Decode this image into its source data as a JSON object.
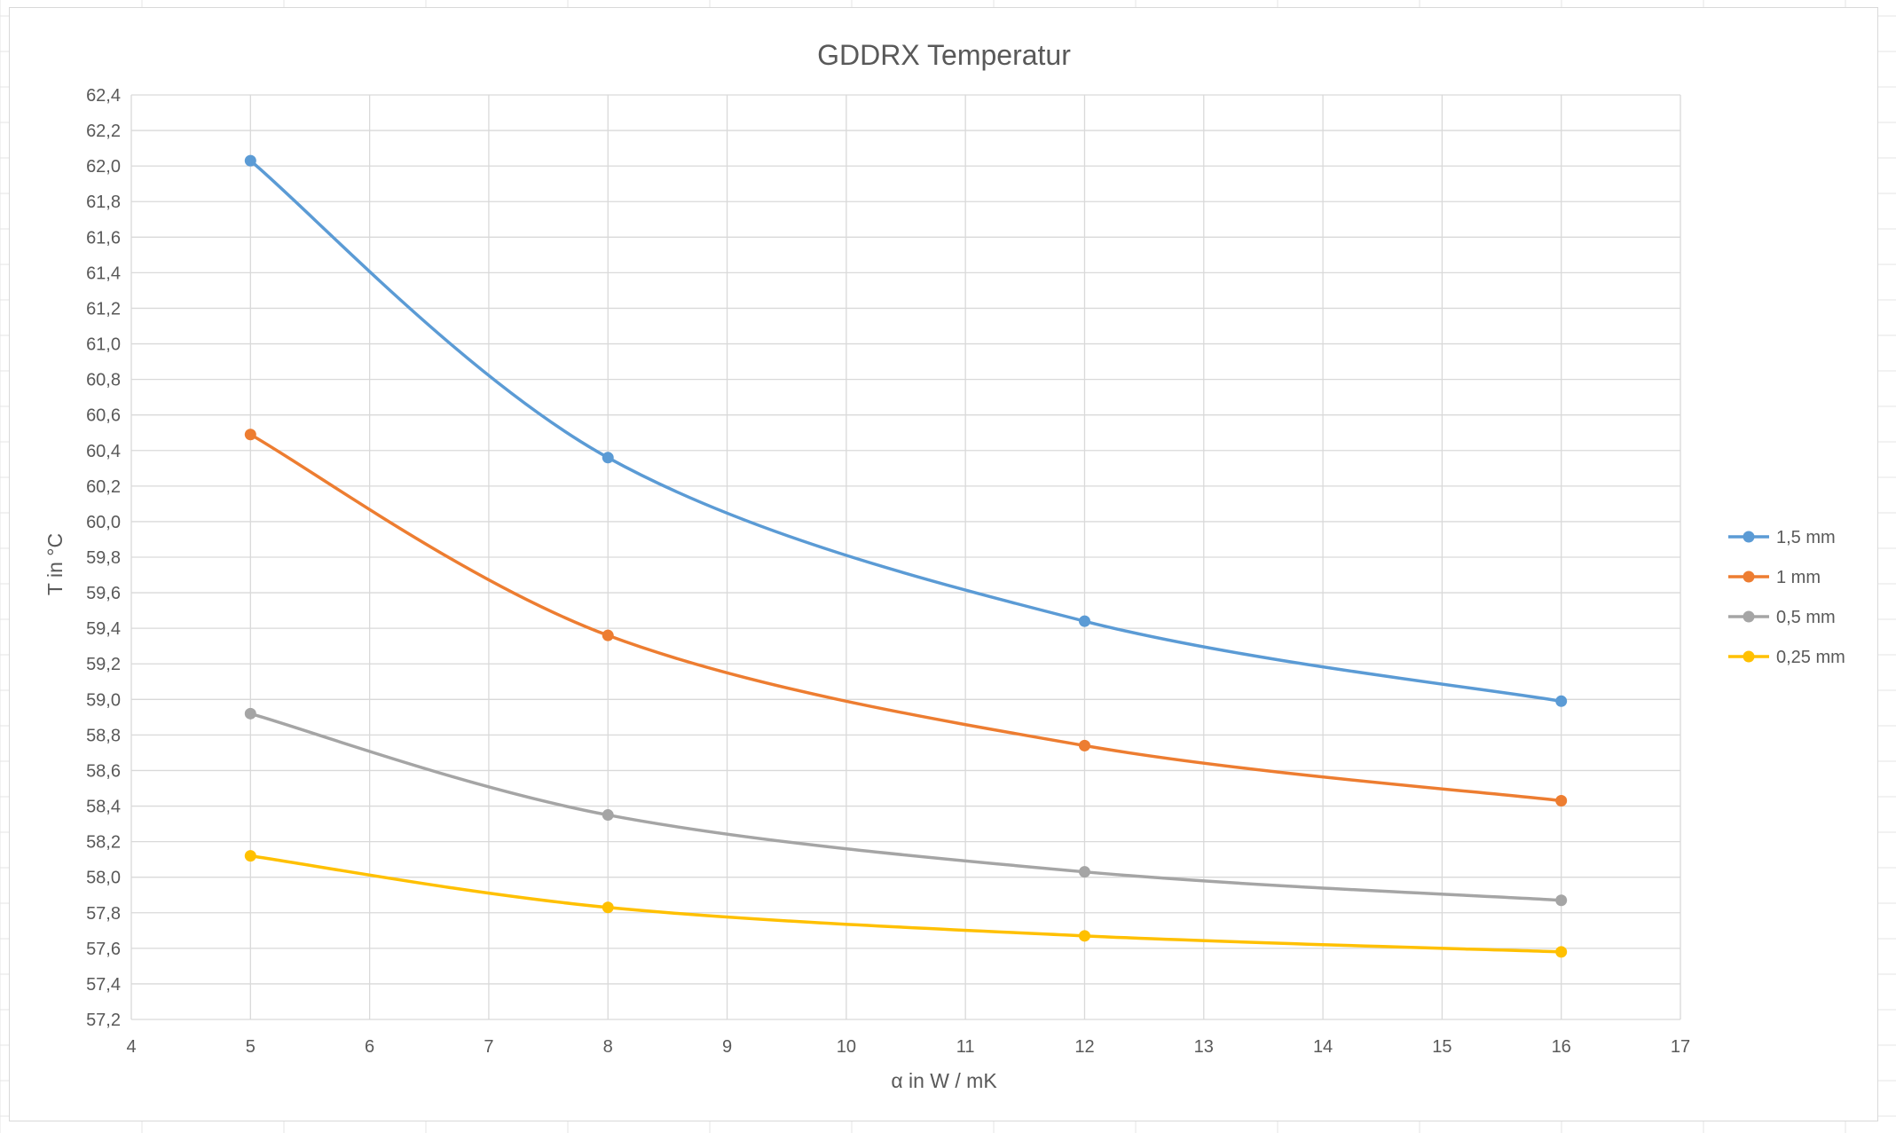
{
  "chart_data": {
    "type": "line",
    "title": "GDDRX Temperatur",
    "xlabel": "α in W / mK",
    "ylabel": "T in °C",
    "xlim": [
      4,
      17
    ],
    "ylim": [
      57.2,
      62.4
    ],
    "x_ticks": [
      "4",
      "5",
      "6",
      "7",
      "8",
      "9",
      "10",
      "11",
      "12",
      "13",
      "14",
      "15",
      "16",
      "17"
    ],
    "y_ticks": [
      "57,2",
      "57,4",
      "57,6",
      "57,8",
      "58,0",
      "58,2",
      "58,4",
      "58,6",
      "58,8",
      "59,0",
      "59,2",
      "59,4",
      "59,6",
      "59,8",
      "60,0",
      "60,2",
      "60,4",
      "60,6",
      "60,8",
      "61,0",
      "61,2",
      "61,4",
      "61,6",
      "61,8",
      "62,0",
      "62,2",
      "62,4"
    ],
    "grid": true,
    "smooth": true,
    "legend_position": "right",
    "x": [
      5,
      8,
      12,
      16
    ],
    "series": [
      {
        "name": "1,5 mm",
        "color": "#5b9bd5",
        "values": [
          62.03,
          60.36,
          59.44,
          58.99
        ]
      },
      {
        "name": "1 mm",
        "color": "#ed7d31",
        "values": [
          60.49,
          59.36,
          58.74,
          58.43
        ]
      },
      {
        "name": "0,5 mm",
        "color": "#a5a5a5",
        "values": [
          58.92,
          58.35,
          58.03,
          57.87
        ]
      },
      {
        "name": "0,25 mm",
        "color": "#ffc000",
        "values": [
          58.12,
          57.83,
          57.67,
          57.58
        ]
      }
    ]
  }
}
